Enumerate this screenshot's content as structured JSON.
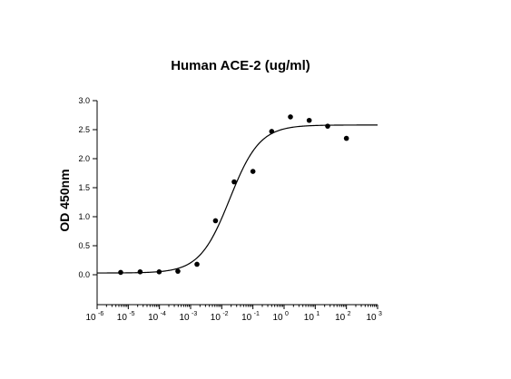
{
  "chart_data": {
    "type": "scatter",
    "title": "Human ACE-2 (ug/ml)",
    "xlabel": "",
    "ylabel": "OD 450nm",
    "x_scale": "log",
    "xlim": [
      1e-06,
      1000
    ],
    "ylim": [
      0,
      3.0
    ],
    "y_axis_min_drawn": -0.5,
    "yticks": [
      "0.0",
      "0.5",
      "1.0",
      "1.5",
      "2.0",
      "2.5",
      "3.0"
    ],
    "xticks": [
      {
        "base": "10",
        "exp": "-6"
      },
      {
        "base": "10",
        "exp": "-5"
      },
      {
        "base": "10",
        "exp": "-4"
      },
      {
        "base": "10",
        "exp": "-3"
      },
      {
        "base": "10",
        "exp": "-2"
      },
      {
        "base": "10",
        "exp": "-1"
      },
      {
        "base": "10",
        "exp": "0"
      },
      {
        "base": "10",
        "exp": "1"
      },
      {
        "base": "10",
        "exp": "2"
      },
      {
        "base": "10",
        "exp": "3"
      }
    ],
    "grid": false,
    "legend": "none",
    "series": [
      {
        "points": [
          {
            "x": 5.7e-06,
            "y": 0.04
          },
          {
            "x": 2.4e-05,
            "y": 0.05
          },
          {
            "x": 9.8e-05,
            "y": 0.05
          },
          {
            "x": 0.00039,
            "y": 0.06
          },
          {
            "x": 0.0016,
            "y": 0.18
          },
          {
            "x": 0.0063,
            "y": 0.93
          },
          {
            "x": 0.025,
            "y": 1.6
          },
          {
            "x": 0.1,
            "y": 1.78
          },
          {
            "x": 0.4,
            "y": 2.47
          },
          {
            "x": 1.6,
            "y": 2.72
          },
          {
            "x": 6.4,
            "y": 2.66
          },
          {
            "x": 25,
            "y": 2.56
          },
          {
            "x": 100,
            "y": 2.35
          }
        ]
      }
    ],
    "fit_curve": {
      "model": "4PL",
      "bottom": 0.03,
      "top": 2.58,
      "ec50": 0.018,
      "hill": 0.9
    }
  }
}
